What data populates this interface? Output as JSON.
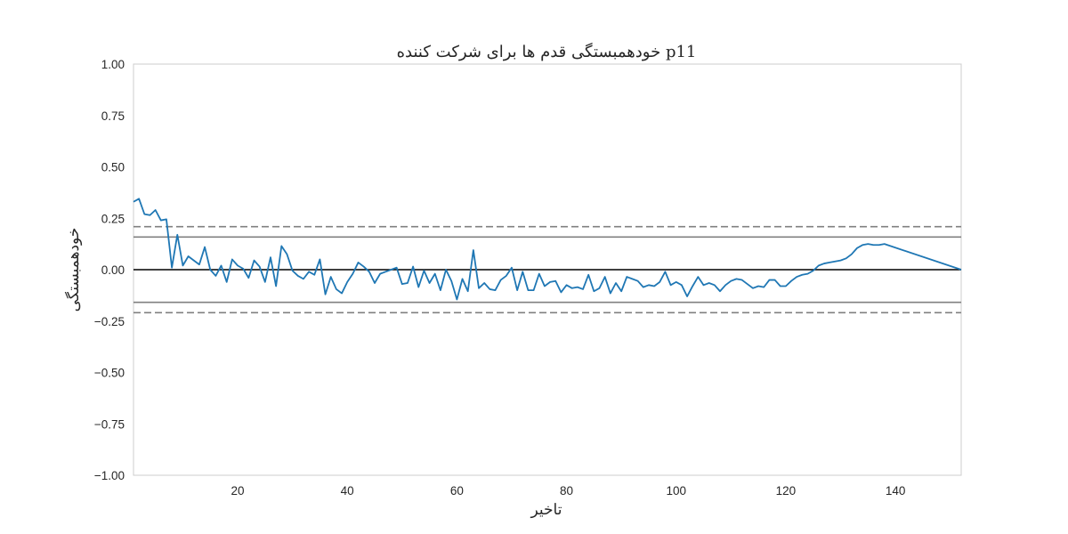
{
  "chart_data": {
    "type": "line",
    "title": "خودهمبستگی قدم ها برای شرکت کننده p11",
    "xlabel": "تاخیر",
    "ylabel": "خودهمبستگی",
    "xlim": [
      1,
      152
    ],
    "ylim": [
      -1.0,
      1.0
    ],
    "x_ticks": [
      "20",
      "40",
      "60",
      "80",
      "100",
      "120",
      "140"
    ],
    "y_ticks": [
      "1.00",
      "0.75",
      "0.50",
      "0.25",
      "0.00",
      "−0.25",
      "−0.50",
      "−0.75",
      "−1.00"
    ],
    "grid": false,
    "confidence_bands": {
      "z95": 0.159,
      "z99": 0.209
    },
    "series": [
      {
        "color": "#1f77b4",
        "x": [
          1,
          2,
          3,
          4,
          5,
          6,
          7,
          8,
          9,
          10,
          11,
          12,
          13,
          14,
          15,
          16,
          17,
          18,
          19,
          20,
          21,
          22,
          23,
          24,
          25,
          26,
          27,
          28,
          29,
          30,
          31,
          32,
          33,
          34,
          35,
          36,
          37,
          38,
          39,
          40,
          41,
          42,
          43,
          44,
          45,
          46,
          47,
          48,
          49,
          50,
          51,
          52,
          53,
          54,
          55,
          56,
          57,
          58,
          59,
          60,
          61,
          62,
          63,
          64,
          65,
          66,
          67,
          68,
          69,
          70,
          71,
          72,
          73,
          74,
          75,
          76,
          77,
          78,
          79,
          80,
          81,
          82,
          83,
          84,
          85,
          86,
          87,
          88,
          89,
          90,
          91,
          92,
          93,
          94,
          95,
          96,
          97,
          98,
          99,
          100,
          101,
          102,
          103,
          104,
          105,
          106,
          107,
          108,
          109,
          110,
          111,
          112,
          113,
          114,
          115,
          116,
          117,
          118,
          119,
          120,
          121,
          122,
          123,
          124,
          125,
          126,
          127,
          128,
          129,
          130,
          131,
          132,
          133,
          134,
          135,
          136,
          137,
          138,
          152
        ],
        "values": [
          0.33,
          0.345,
          0.27,
          0.265,
          0.29,
          0.24,
          0.245,
          0.01,
          0.17,
          0.02,
          0.065,
          0.045,
          0.025,
          0.11,
          0.0,
          -0.03,
          0.02,
          -0.06,
          0.05,
          0.02,
          0.005,
          -0.04,
          0.045,
          0.015,
          -0.06,
          0.06,
          -0.08,
          0.115,
          0.075,
          -0.005,
          -0.03,
          -0.045,
          -0.01,
          -0.025,
          0.05,
          -0.12,
          -0.035,
          -0.095,
          -0.115,
          -0.06,
          -0.02,
          0.035,
          0.015,
          -0.01,
          -0.065,
          -0.02,
          -0.01,
          0.0,
          0.01,
          -0.07,
          -0.065,
          0.015,
          -0.085,
          -0.005,
          -0.065,
          -0.02,
          -0.1,
          0.0,
          -0.055,
          -0.145,
          -0.045,
          -0.105,
          0.095,
          -0.09,
          -0.065,
          -0.095,
          -0.1,
          -0.05,
          -0.03,
          0.01,
          -0.1,
          -0.01,
          -0.1,
          -0.1,
          -0.02,
          -0.08,
          -0.06,
          -0.055,
          -0.11,
          -0.075,
          -0.09,
          -0.085,
          -0.095,
          -0.025,
          -0.105,
          -0.09,
          -0.035,
          -0.115,
          -0.065,
          -0.105,
          -0.035,
          -0.045,
          -0.055,
          -0.085,
          -0.075,
          -0.08,
          -0.06,
          -0.01,
          -0.075,
          -0.06,
          -0.075,
          -0.13,
          -0.08,
          -0.035,
          -0.075,
          -0.065,
          -0.075,
          -0.105,
          -0.075,
          -0.055,
          -0.045,
          -0.05,
          -0.07,
          -0.09,
          -0.08,
          -0.085,
          -0.05,
          -0.05,
          -0.08,
          -0.08,
          -0.055,
          -0.035,
          -0.025,
          -0.02,
          -0.005,
          0.02,
          0.03,
          0.035,
          0.04,
          0.045,
          0.055,
          0.075,
          0.105,
          0.12,
          0.125,
          0.12,
          0.12,
          0.125,
          0.0
        ]
      }
    ]
  }
}
